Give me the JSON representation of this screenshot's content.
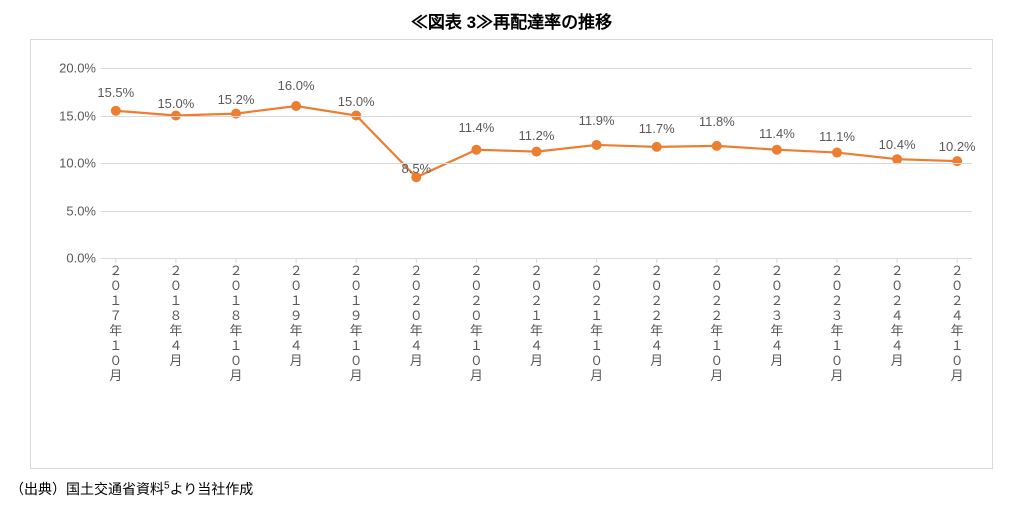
{
  "title": "≪図表 3≫再配達率の推移",
  "source_prefix": "（出典）国土交通省資料",
  "source_sup": "5",
  "source_suffix": "より当社作成",
  "chart": {
    "type": "line",
    "ylim": [
      0,
      20
    ],
    "ytick_step": 5,
    "ytick_format_suffix": ".0%",
    "background_color": "#ffffff",
    "grid_color": "#d9d9d9",
    "axis_color": "#d9d9d9",
    "line_color": "#ed7d31",
    "marker_color": "#ed7d31",
    "marker_size": 5,
    "line_width": 2.2,
    "label_fontsize": 13,
    "label_color": "#595959",
    "categories": [
      "２０１７年１０月",
      "２０１８年４月",
      "２０１８年１０月",
      "２０１９年４月",
      "２０１９年１０月",
      "２０２０年４月",
      "２０２０年１０月",
      "２０２１年４月",
      "２０２１年１０月",
      "２０２２年４月",
      "２０２２年１０月",
      "２０２３年４月",
      "２０２３年１０月",
      "２０２４年４月",
      "２０２４年１０月"
    ],
    "values": [
      15.5,
      15.0,
      15.2,
      16.0,
      15.0,
      8.5,
      11.4,
      11.2,
      11.9,
      11.7,
      11.8,
      11.4,
      11.1,
      10.4,
      10.2
    ],
    "data_labels": [
      "15.5%",
      "15.0%",
      "15.2%",
      "16.0%",
      "15.0%",
      "8.5%",
      "11.4%",
      "11.2%",
      "11.9%",
      "11.7%",
      "11.8%",
      "11.4%",
      "11.1%",
      "10.4%",
      "10.2%"
    ],
    "label_y_offsets": [
      -26,
      -20,
      -22,
      -28,
      -22,
      -16,
      -30,
      -24,
      -32,
      -26,
      -32,
      -24,
      -24,
      -22,
      -22
    ]
  }
}
